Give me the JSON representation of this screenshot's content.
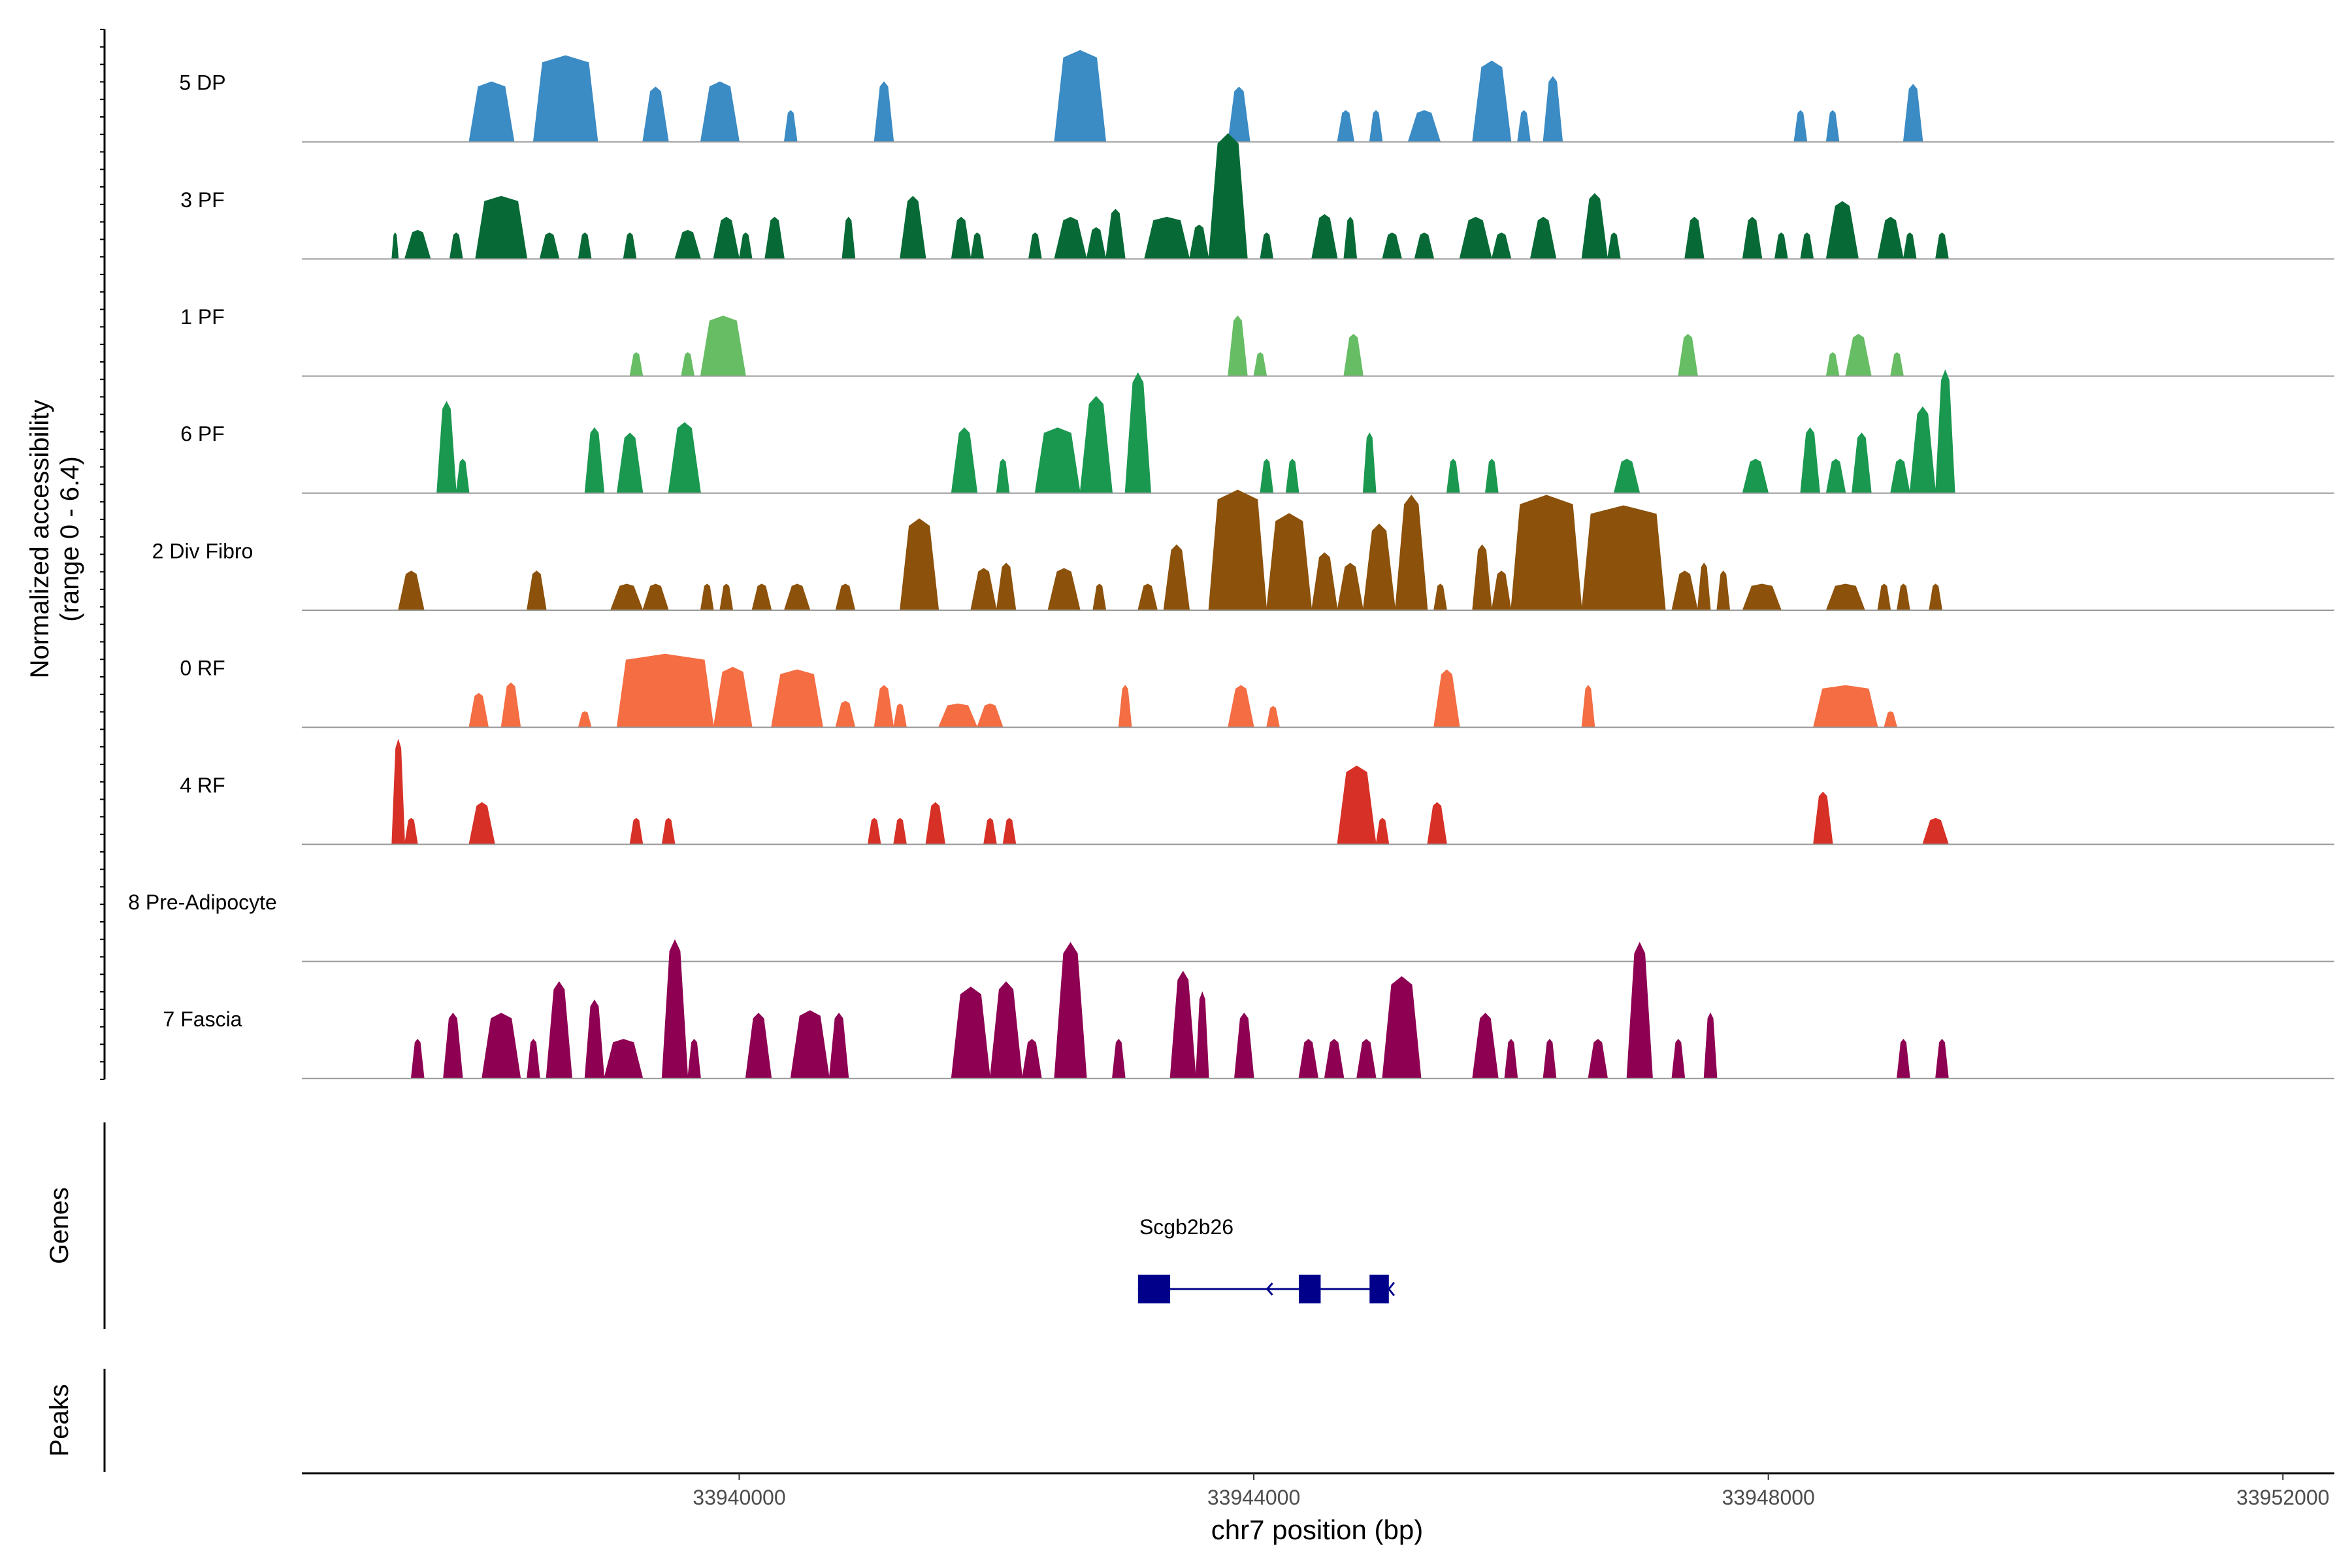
{
  "chart_data": {
    "type": "area",
    "title": "",
    "ylabel_line1": "Normalized accessibility",
    "ylabel_line2": "(range 0 - 6.4)",
    "xlabel": "chr7 position (bp)",
    "xlim": [
      33936600,
      33952400
    ],
    "ylim": [
      0,
      6.4
    ],
    "x_ticks": [
      33940000,
      33944000,
      33948000,
      33952000
    ],
    "x_tick_labels": [
      "33940000",
      "33944000",
      "33948000",
      "33952000"
    ],
    "tracks": [
      {
        "name": "5 DP",
        "color": "#3B8BC4",
        "peaks": [
          [
            33937900,
            33938250,
            2.3
          ],
          [
            33938400,
            33938900,
            3.3
          ],
          [
            33939250,
            33939450,
            2.1
          ],
          [
            33939700,
            33940000,
            2.3
          ],
          [
            33940350,
            33940450,
            1.2
          ],
          [
            33941050,
            33941200,
            2.3
          ],
          [
            33942450,
            33942850,
            3.5
          ],
          [
            33943800,
            33943970,
            2.1
          ],
          [
            33944650,
            33944780,
            1.2
          ],
          [
            33944900,
            33945000,
            1.2
          ],
          [
            33945200,
            33945450,
            1.2
          ],
          [
            33945700,
            33946000,
            3.1
          ],
          [
            33946050,
            33946150,
            1.2
          ],
          [
            33946250,
            33946400,
            2.5
          ],
          [
            33948200,
            33948300,
            1.2
          ],
          [
            33948450,
            33948550,
            1.2
          ],
          [
            33949050,
            33949200,
            2.2
          ]
        ]
      },
      {
        "name": "3 PF",
        "color": "#076A36",
        "peaks": [
          [
            33937300,
            33937350,
            1.0
          ],
          [
            33937400,
            33937600,
            1.1
          ],
          [
            33937750,
            33937850,
            1.0
          ],
          [
            33937950,
            33938350,
            2.4
          ],
          [
            33938450,
            33938600,
            1.0
          ],
          [
            33938750,
            33938850,
            1.0
          ],
          [
            33939100,
            33939200,
            1.0
          ],
          [
            33939500,
            33939700,
            1.1
          ],
          [
            33939800,
            33940000,
            1.6
          ],
          [
            33940000,
            33940100,
            1.0
          ],
          [
            33940200,
            33940350,
            1.6
          ],
          [
            33940800,
            33940900,
            1.6
          ],
          [
            33941250,
            33941450,
            2.4
          ],
          [
            33941650,
            33941800,
            1.6
          ],
          [
            33941800,
            33941900,
            1.0
          ],
          [
            33942250,
            33942350,
            1.0
          ],
          [
            33942450,
            33942700,
            1.6
          ],
          [
            33942700,
            33942850,
            1.2
          ],
          [
            33942850,
            33943000,
            1.9
          ],
          [
            33943150,
            33943500,
            1.6
          ],
          [
            33943500,
            33943650,
            1.3
          ],
          [
            33943650,
            33943950,
            4.8
          ],
          [
            33944050,
            33944150,
            1.0
          ],
          [
            33944450,
            33944650,
            1.7
          ],
          [
            33944700,
            33944800,
            1.6
          ],
          [
            33945000,
            33945150,
            1.0
          ],
          [
            33945250,
            33945400,
            1.0
          ],
          [
            33945600,
            33945850,
            1.6
          ],
          [
            33945850,
            33946000,
            1.0
          ],
          [
            33946150,
            33946350,
            1.6
          ],
          [
            33946550,
            33946750,
            2.5
          ],
          [
            33946750,
            33946850,
            1.0
          ],
          [
            33947350,
            33947500,
            1.6
          ],
          [
            33947800,
            33947950,
            1.6
          ],
          [
            33948050,
            33948150,
            1.0
          ],
          [
            33948250,
            33948350,
            1.0
          ],
          [
            33948450,
            33948700,
            2.2
          ],
          [
            33948850,
            33949050,
            1.6
          ],
          [
            33949050,
            33949150,
            1.0
          ],
          [
            33949300,
            33949400,
            1.0
          ]
        ]
      },
      {
        "name": "1 PF",
        "color": "#66BD63",
        "peaks": [
          [
            33939150,
            33939250,
            0.9
          ],
          [
            33939550,
            33939650,
            0.9
          ],
          [
            33939700,
            33940050,
            2.3
          ],
          [
            33943800,
            33943950,
            2.3
          ],
          [
            33944000,
            33944100,
            0.9
          ],
          [
            33944700,
            33944850,
            1.6
          ],
          [
            33947300,
            33947450,
            1.6
          ],
          [
            33948450,
            33948550,
            0.9
          ],
          [
            33948600,
            33948800,
            1.6
          ],
          [
            33948950,
            33949050,
            0.9
          ]
        ]
      },
      {
        "name": "6 PF",
        "color": "#1A9850",
        "peaks": [
          [
            33937650,
            33937800,
            3.5
          ],
          [
            33937800,
            33937900,
            1.3
          ],
          [
            33938800,
            33938950,
            2.5
          ],
          [
            33939050,
            33939250,
            2.3
          ],
          [
            33939450,
            33939700,
            2.7
          ],
          [
            33941650,
            33941850,
            2.5
          ],
          [
            33942000,
            33942100,
            1.3
          ],
          [
            33942300,
            33942650,
            2.5
          ],
          [
            33942650,
            33942900,
            3.7
          ],
          [
            33943000,
            33943200,
            4.6
          ],
          [
            33944050,
            33944150,
            1.3
          ],
          [
            33944250,
            33944350,
            1.3
          ],
          [
            33944850,
            33944950,
            2.3
          ],
          [
            33945500,
            33945600,
            1.3
          ],
          [
            33945800,
            33945900,
            1.3
          ],
          [
            33946800,
            33947000,
            1.3
          ],
          [
            33947800,
            33948000,
            1.3
          ],
          [
            33948250,
            33948400,
            2.5
          ],
          [
            33948450,
            33948600,
            1.3
          ],
          [
            33948650,
            33948800,
            2.3
          ],
          [
            33948950,
            33949100,
            1.3
          ],
          [
            33949100,
            33949300,
            3.3
          ],
          [
            33949300,
            33949450,
            4.7
          ]
        ]
      },
      {
        "name": "2 Div Fibro",
        "color": "#8C510A",
        "peaks": [
          [
            33937350,
            33937550,
            1.5
          ],
          [
            33938350,
            33938500,
            1.5
          ],
          [
            33939000,
            33939250,
            1.0
          ],
          [
            33939250,
            33939450,
            1.0
          ],
          [
            33939700,
            33939800,
            1.0
          ],
          [
            33939850,
            33939950,
            1.0
          ],
          [
            33940100,
            33940250,
            1.0
          ],
          [
            33940350,
            33940550,
            1.0
          ],
          [
            33940750,
            33940900,
            1.0
          ],
          [
            33941250,
            33941550,
            3.5
          ],
          [
            33941800,
            33942000,
            1.6
          ],
          [
            33942000,
            33942150,
            1.8
          ],
          [
            33942400,
            33942650,
            1.6
          ],
          [
            33942750,
            33942850,
            1.0
          ],
          [
            33943100,
            33943250,
            1.0
          ],
          [
            33943300,
            33943500,
            2.5
          ],
          [
            33943650,
            33944100,
            4.6
          ],
          [
            33944100,
            33944450,
            3.7
          ],
          [
            33944450,
            33944650,
            2.2
          ],
          [
            33944650,
            33944850,
            1.8
          ],
          [
            33944850,
            33945100,
            3.3
          ],
          [
            33945100,
            33945350,
            4.4
          ],
          [
            33945400,
            33945500,
            1.0
          ],
          [
            33945700,
            33945850,
            2.5
          ],
          [
            33945850,
            33946000,
            1.5
          ],
          [
            33946000,
            33946550,
            4.4
          ],
          [
            33946550,
            33947200,
            4.0
          ],
          [
            33947250,
            33947450,
            1.5
          ],
          [
            33947450,
            33947550,
            1.8
          ],
          [
            33947600,
            33947700,
            1.5
          ],
          [
            33947800,
            33948100,
            1.0
          ],
          [
            33948450,
            33948750,
            1.0
          ],
          [
            33948850,
            33948950,
            1.0
          ],
          [
            33949000,
            33949100,
            1.0
          ],
          [
            33949250,
            33949350,
            1.0
          ]
        ]
      },
      {
        "name": "0 RF",
        "color": "#F46D43",
        "peaks": [
          [
            33937900,
            33938050,
            1.3
          ],
          [
            33938150,
            33938300,
            1.7
          ],
          [
            33938750,
            33938850,
            0.6
          ],
          [
            33939050,
            33939800,
            2.8
          ],
          [
            33939800,
            33940100,
            2.3
          ],
          [
            33940250,
            33940650,
            2.2
          ],
          [
            33940750,
            33940900,
            1.0
          ],
          [
            33941050,
            33941200,
            1.6
          ],
          [
            33941200,
            33941300,
            0.9
          ],
          [
            33941550,
            33941850,
            0.9
          ],
          [
            33941850,
            33942050,
            0.9
          ],
          [
            33942950,
            33943050,
            1.6
          ],
          [
            33943800,
            33944000,
            1.6
          ],
          [
            33944100,
            33944200,
            0.8
          ],
          [
            33945400,
            33945600,
            2.2
          ],
          [
            33946550,
            33946650,
            1.6
          ],
          [
            33948350,
            33948850,
            1.6
          ],
          [
            33948900,
            33949000,
            0.6
          ]
        ]
      },
      {
        "name": "4 RF",
        "color": "#D73027",
        "peaks": [
          [
            33937300,
            33937400,
            4.0
          ],
          [
            33937400,
            33937500,
            1.0
          ],
          [
            33937900,
            33938100,
            1.6
          ],
          [
            33939150,
            33939250,
            1.0
          ],
          [
            33939400,
            33939500,
            1.0
          ],
          [
            33941000,
            33941100,
            1.0
          ],
          [
            33941200,
            33941300,
            1.0
          ],
          [
            33941450,
            33941600,
            1.6
          ],
          [
            33941900,
            33942000,
            1.0
          ],
          [
            33942050,
            33942150,
            1.0
          ],
          [
            33944650,
            33944950,
            3.0
          ],
          [
            33944950,
            33945050,
            1.0
          ],
          [
            33945350,
            33945500,
            1.6
          ],
          [
            33948350,
            33948500,
            2.0
          ],
          [
            33949200,
            33949400,
            1.0
          ]
        ]
      },
      {
        "name": "8 Pre-Adipocyte",
        "color": "#999999",
        "peaks": []
      },
      {
        "name": "7 Fascia",
        "color": "#8E0152",
        "peaks": [
          [
            33937450,
            33937550,
            1.5
          ],
          [
            33937700,
            33937850,
            2.5
          ],
          [
            33938000,
            33938300,
            2.5
          ],
          [
            33938350,
            33938450,
            1.5
          ],
          [
            33938500,
            33938700,
            3.7
          ],
          [
            33938800,
            33938950,
            3.0
          ],
          [
            33938950,
            33939250,
            1.5
          ],
          [
            33939400,
            33939600,
            5.3
          ],
          [
            33939600,
            33939700,
            1.5
          ],
          [
            33940050,
            33940250,
            2.5
          ],
          [
            33940400,
            33940700,
            2.6
          ],
          [
            33940700,
            33940850,
            2.5
          ],
          [
            33941650,
            33941950,
            3.5
          ],
          [
            33941950,
            33942200,
            3.7
          ],
          [
            33942200,
            33942350,
            1.5
          ],
          [
            33942450,
            33942700,
            5.2
          ],
          [
            33942900,
            33943000,
            1.5
          ],
          [
            33943350,
            33943550,
            4.1
          ],
          [
            33943550,
            33943650,
            3.3
          ],
          [
            33943850,
            33944000,
            2.5
          ],
          [
            33944350,
            33944500,
            1.5
          ],
          [
            33944550,
            33944700,
            1.5
          ],
          [
            33944800,
            33944950,
            1.5
          ],
          [
            33945000,
            33945300,
            3.9
          ],
          [
            33945700,
            33945900,
            2.5
          ],
          [
            33945950,
            33946050,
            1.5
          ],
          [
            33946250,
            33946350,
            1.5
          ],
          [
            33946600,
            33946750,
            1.5
          ],
          [
            33946900,
            33947100,
            5.2
          ],
          [
            33947250,
            33947350,
            1.5
          ],
          [
            33947500,
            33947600,
            2.5
          ],
          [
            33949000,
            33949100,
            1.5
          ],
          [
            33949300,
            33949400,
            1.5
          ]
        ]
      }
    ],
    "genes_label": "Genes",
    "peaks_label": "Peaks",
    "gene": {
      "name": "Scgb2b26",
      "color": "#00008B",
      "start": 33943100,
      "end": 33945050,
      "strand": "-",
      "exons": [
        [
          33943100,
          33943350
        ],
        [
          33944350,
          33944520
        ],
        [
          33944900,
          33945050
        ]
      ]
    }
  }
}
